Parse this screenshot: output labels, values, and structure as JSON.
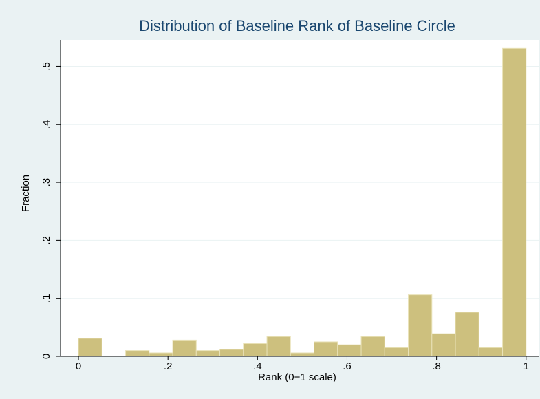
{
  "chart_data": {
    "type": "histogram",
    "title": "Distribution of Baseline Rank of Baseline Circle",
    "x_label": "Rank (0−1 scale)",
    "y_label": "Fraction",
    "bins": [
      0,
      0.0526,
      0.1053,
      0.1579,
      0.2105,
      0.2632,
      0.3158,
      0.3684,
      0.4211,
      0.4737,
      0.5263,
      0.5789,
      0.6316,
      0.6842,
      0.7368,
      0.7895,
      0.8421,
      0.8947,
      0.9474,
      1
    ],
    "values": [
      0.031,
      0,
      0.01,
      0.006,
      0.028,
      0.01,
      0.012,
      0.022,
      0.034,
      0.006,
      0.025,
      0.02,
      0.034,
      0.015,
      0.106,
      0.039,
      0.076,
      0.015,
      0.531
    ],
    "color": "#cdc07e",
    "xlim": [
      -0.04,
      1.028
    ],
    "ylim": [
      0,
      0.5456
    ],
    "xticks": [
      0,
      {
        "value": 0.2,
        "label": ".2"
      },
      {
        "value": 0.4,
        "label": ".4"
      },
      {
        "value": 0.6,
        "label": ".6"
      },
      {
        "value": 0.8,
        "label": ".8"
      },
      1
    ],
    "yticks": [
      0,
      {
        "value": 0.1,
        "label": ".1"
      },
      {
        "value": 0.2,
        "label": ".2"
      },
      {
        "value": 0.3,
        "label": ".3"
      },
      {
        "value": 0.4,
        "label": ".4"
      },
      {
        "value": 0.5,
        "label": ".5"
      }
    ],
    "grid": true
  }
}
